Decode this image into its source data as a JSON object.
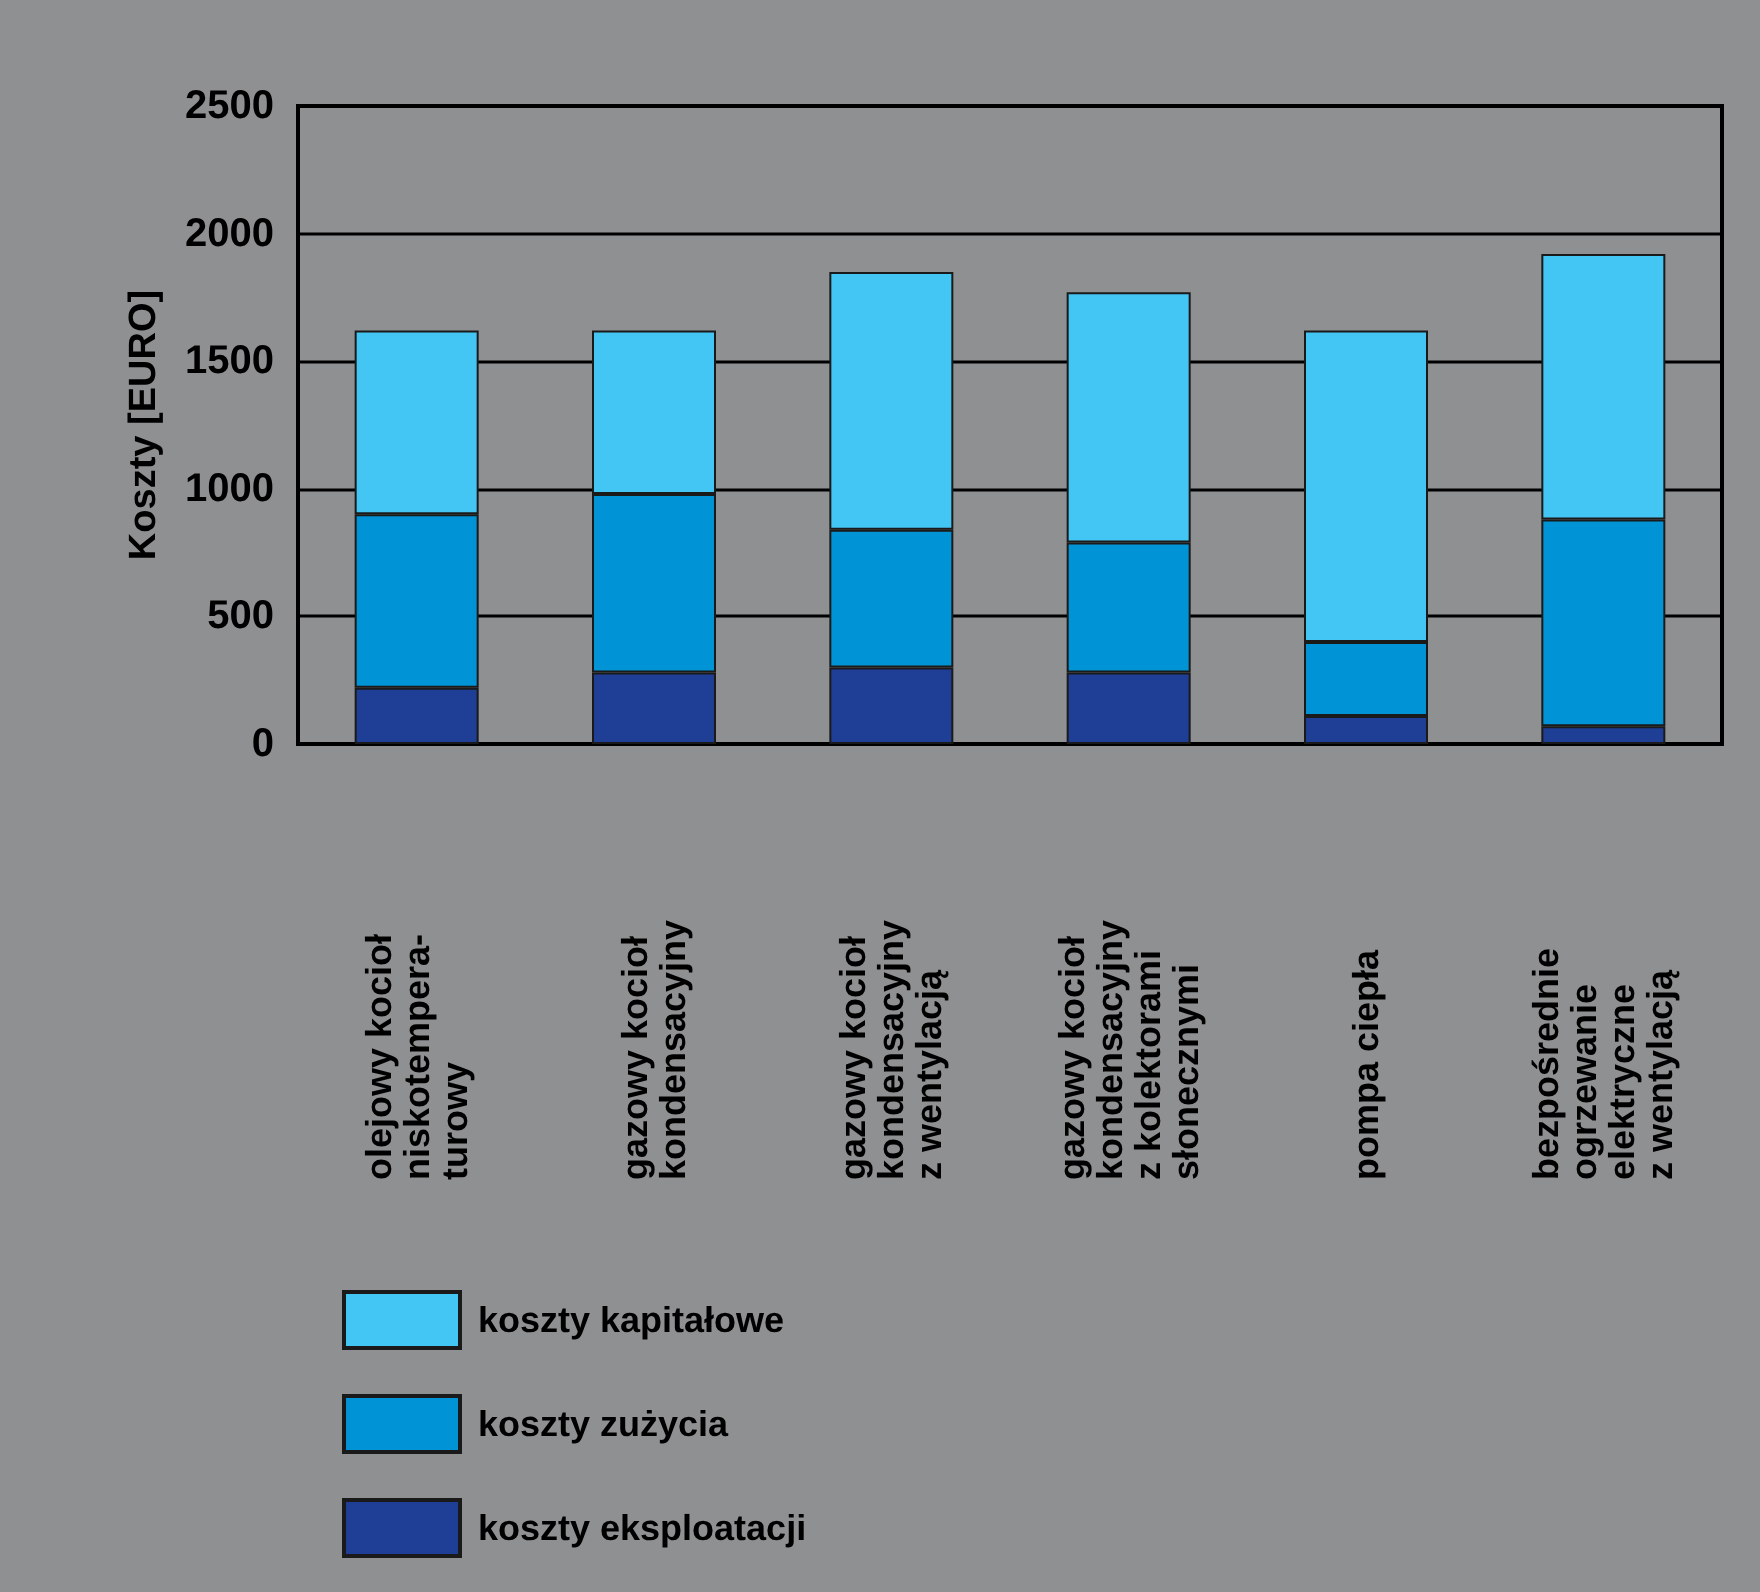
{
  "chart_data": {
    "type": "bar",
    "stacked": true,
    "ylabel": "Koszty [EURO]",
    "categories": [
      "olejowy kocioł\nniskotempera-\nturowy",
      "gazowy kocioł\nkondensacyjny",
      "gazowy kocioł\nkondensacyjny\nz wentylacją",
      "gazowy kocioł\nkondensacyjny\nz kolektorami\nsłonecznymi",
      "pompa ciepła",
      "bezpośrednie\nogrzewanie\nelektryczne\nz wentylacją"
    ],
    "series": [
      {
        "name": "koszty eksploatacji",
        "color": "#1f3e96",
        "values": [
          220,
          280,
          300,
          280,
          110,
          70
        ]
      },
      {
        "name": "koszty zużycia",
        "color": "#0094d6",
        "values": [
          680,
          700,
          540,
          510,
          290,
          810
        ]
      },
      {
        "name": "koszty kapitałowe",
        "color": "#44c6f4",
        "values": [
          720,
          640,
          1010,
          980,
          1220,
          1040
        ]
      }
    ],
    "ylim": [
      0,
      2500
    ],
    "yticks": [
      0,
      500,
      1000,
      1500,
      2000,
      2500
    ],
    "grid": "y",
    "legend": "bottom"
  }
}
